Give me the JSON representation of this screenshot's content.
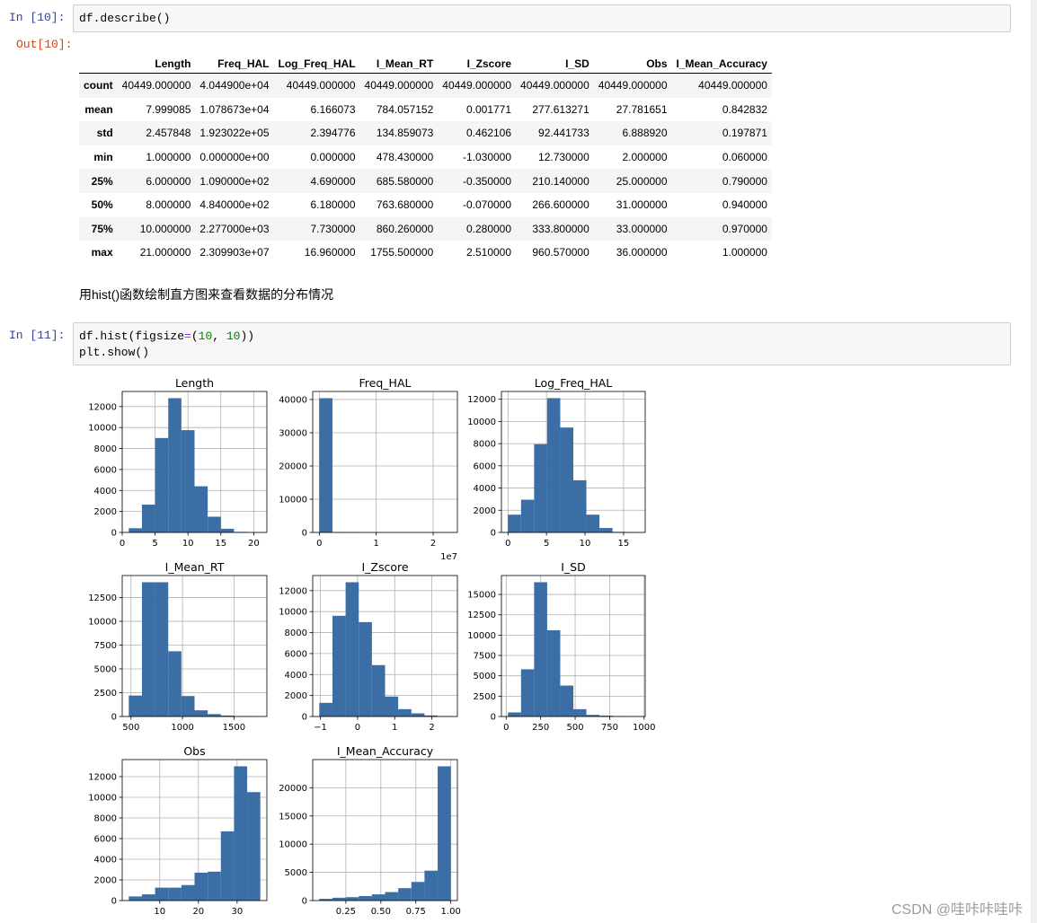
{
  "cells": {
    "in10_prompt": "In  [10]:",
    "out10_prompt": "Out[10]:",
    "in11_prompt": "In  [11]:",
    "code10": "df.describe()",
    "code11_line1_a": "df.hist(figsize",
    "code11_line1_eq": "=",
    "code11_line1_b": "(",
    "code11_line1_n1": "10",
    "code11_line1_c": ", ",
    "code11_line1_n2": "10",
    "code11_line1_d": "))",
    "code11_line2": "plt.show()"
  },
  "table": {
    "columns": [
      "",
      "Length",
      "Freq_HAL",
      "Log_Freq_HAL",
      "I_Mean_RT",
      "I_Zscore",
      "I_SD",
      "Obs",
      "I_Mean_Accuracy"
    ],
    "rows": [
      [
        "count",
        "40449.000000",
        "4.044900e+04",
        "40449.000000",
        "40449.000000",
        "40449.000000",
        "40449.000000",
        "40449.000000",
        "40449.000000"
      ],
      [
        "mean",
        "7.999085",
        "1.078673e+04",
        "6.166073",
        "784.057152",
        "0.001771",
        "277.613271",
        "27.781651",
        "0.842832"
      ],
      [
        "std",
        "2.457848",
        "1.923022e+05",
        "2.394776",
        "134.859073",
        "0.462106",
        "92.441733",
        "6.888920",
        "0.197871"
      ],
      [
        "min",
        "1.000000",
        "0.000000e+00",
        "0.000000",
        "478.430000",
        "-1.030000",
        "12.730000",
        "2.000000",
        "0.060000"
      ],
      [
        "25%",
        "6.000000",
        "1.090000e+02",
        "4.690000",
        "685.580000",
        "-0.350000",
        "210.140000",
        "25.000000",
        "0.790000"
      ],
      [
        "50%",
        "8.000000",
        "4.840000e+02",
        "6.180000",
        "763.680000",
        "-0.070000",
        "266.600000",
        "31.000000",
        "0.940000"
      ],
      [
        "75%",
        "10.000000",
        "2.277000e+03",
        "7.730000",
        "860.260000",
        "0.280000",
        "333.800000",
        "33.000000",
        "0.970000"
      ],
      [
        "max",
        "21.000000",
        "2.309903e+07",
        "16.960000",
        "1755.500000",
        "2.510000",
        "960.570000",
        "36.000000",
        "1.000000"
      ]
    ]
  },
  "markdown_text": "用hist()函数绘制直方图来查看数据的分布情况",
  "watermark": "CSDN @哇咔咔哇咔",
  "colors": {
    "bar": "#3a6ea5",
    "grid": "#b0b0b0",
    "axes": "#000000"
  },
  "chart_data": [
    {
      "type": "bar",
      "title": "Length",
      "bin_edges": [
        1,
        3,
        5,
        7,
        9,
        11,
        13,
        15,
        17,
        19,
        21
      ],
      "values": [
        400,
        2650,
        9000,
        12800,
        9750,
        4400,
        1500,
        350,
        50,
        10
      ],
      "xlim": [
        0,
        22
      ],
      "ylim": [
        0,
        13440
      ],
      "xticks": [
        0,
        5,
        10,
        15,
        20
      ],
      "yticks": [
        0,
        2000,
        4000,
        6000,
        8000,
        10000,
        12000
      ]
    },
    {
      "type": "bar",
      "title": "Freq_HAL",
      "bin_edges": [
        0,
        2309903,
        4619806,
        6929709,
        9239612,
        11549515,
        13859418,
        16169321,
        18479224,
        20789127,
        23099030
      ],
      "values": [
        40400,
        30,
        8,
        4,
        2,
        2,
        1,
        0,
        0,
        1
      ],
      "xlim": [
        -1154951,
        24253981
      ],
      "ylim": [
        0,
        42420
      ],
      "xticks": [
        0,
        10000000,
        20000000
      ],
      "xtick_labels": [
        "0",
        "1",
        "2"
      ],
      "offset_text": "1e7",
      "yticks": [
        0,
        10000,
        20000,
        30000,
        40000
      ]
    },
    {
      "type": "bar",
      "title": "Log_Freq_HAL",
      "bin_edges": [
        0,
        1.696,
        3.392,
        5.088,
        6.784,
        8.48,
        10.176,
        11.872,
        13.568,
        15.264,
        16.96
      ],
      "values": [
        1600,
        2950,
        7950,
        12100,
        9450,
        4700,
        1600,
        400,
        50,
        10
      ],
      "xlim": [
        -0.848,
        17.808
      ],
      "ylim": [
        0,
        12700
      ],
      "xticks": [
        0,
        5,
        10,
        15
      ],
      "yticks": [
        0,
        2000,
        4000,
        6000,
        8000,
        10000,
        12000
      ]
    },
    {
      "type": "bar",
      "title": "I_Mean_RT",
      "bin_edges": [
        478.43,
        606.137,
        733.844,
        861.551,
        989.258,
        1116.965,
        1244.672,
        1372.379,
        1500.086,
        1627.793,
        1755.5
      ],
      "values": [
        2200,
        14100,
        14100,
        6850,
        2150,
        650,
        250,
        100,
        30,
        10
      ],
      "xlim": [
        414.58,
        1819.35
      ],
      "ylim": [
        0,
        14805
      ],
      "xticks": [
        500,
        1000,
        1500
      ],
      "yticks": [
        0,
        2500,
        5000,
        7500,
        10000,
        12500
      ]
    },
    {
      "type": "bar",
      "title": "I_Zscore",
      "bin_edges": [
        -1.03,
        -0.676,
        -0.322,
        0.032,
        0.386,
        0.74,
        1.094,
        1.448,
        1.802,
        2.156,
        2.51
      ],
      "values": [
        1300,
        9600,
        12800,
        9000,
        4900,
        1900,
        700,
        300,
        100,
        30
      ],
      "xlim": [
        -1.207,
        2.687
      ],
      "ylim": [
        0,
        13440
      ],
      "xticks": [
        -1,
        0,
        1,
        2
      ],
      "xtick_labels": [
        "−1",
        "0",
        "1",
        "2"
      ],
      "yticks": [
        0,
        2000,
        4000,
        6000,
        8000,
        10000,
        12000
      ]
    },
    {
      "type": "bar",
      "title": "I_SD",
      "bin_edges": [
        12.73,
        107.514,
        202.298,
        297.082,
        391.866,
        486.65,
        581.434,
        676.218,
        771.002,
        865.786,
        960.57
      ],
      "values": [
        500,
        5800,
        16500,
        10600,
        3800,
        900,
        200,
        100,
        30,
        10
      ],
      "xlim": [
        -34.66,
        1007.96
      ],
      "ylim": [
        0,
        17325
      ],
      "xticks": [
        0,
        250,
        500,
        750,
        1000
      ],
      "yticks": [
        0,
        2500,
        5000,
        7500,
        10000,
        12500,
        15000
      ]
    },
    {
      "type": "bar",
      "title": "Obs",
      "bin_edges": [
        2,
        5.4,
        8.8,
        12.2,
        15.6,
        19,
        22.4,
        25.8,
        29.2,
        32.6,
        36
      ],
      "values": [
        400,
        600,
        1250,
        1250,
        1500,
        2700,
        2800,
        6700,
        13000,
        10500
      ],
      "xlim": [
        0.3,
        37.7
      ],
      "ylim": [
        0,
        13650
      ],
      "xticks": [
        10,
        20,
        30
      ],
      "yticks": [
        0,
        2000,
        4000,
        6000,
        8000,
        10000,
        12000
      ]
    },
    {
      "type": "bar",
      "title": "I_Mean_Accuracy",
      "bin_edges": [
        0.06,
        0.154,
        0.248,
        0.342,
        0.436,
        0.53,
        0.624,
        0.718,
        0.812,
        0.906,
        1.0
      ],
      "values": [
        300,
        500,
        600,
        800,
        1100,
        1500,
        2200,
        3300,
        5300,
        23800
      ],
      "xlim": [
        0.013,
        1.047
      ],
      "ylim": [
        0,
        24990
      ],
      "xticks": [
        0.25,
        0.5,
        0.75,
        1.0
      ],
      "xtick_labels": [
        "0.25",
        "0.50",
        "0.75",
        "1.00"
      ],
      "yticks": [
        0,
        5000,
        10000,
        15000,
        20000
      ]
    }
  ]
}
